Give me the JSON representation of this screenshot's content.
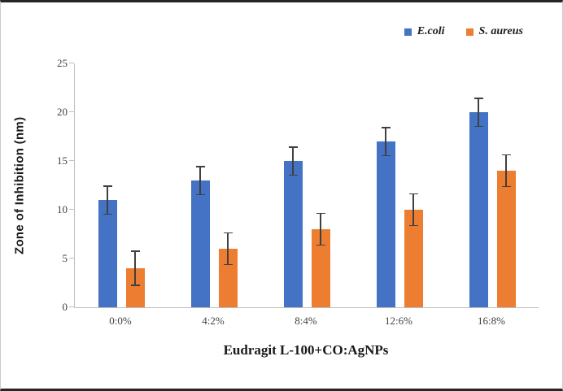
{
  "figure": {
    "background": "#ffffff",
    "side_border_color": "#cccccc",
    "rule_color": "#262626"
  },
  "chart_data": {
    "type": "bar",
    "title": "",
    "xlabel": "Eudragit L-100+CO:AgNPs",
    "ylabel": "Zone of Inhibition (nm)",
    "categories": [
      "0:0%",
      "4:2%",
      "8:4%",
      "12:6%",
      "16:8%"
    ],
    "series": [
      {
        "name": "E.coli",
        "color": "#4472C4",
        "values": [
          11,
          13,
          15,
          17,
          20
        ],
        "errors": [
          1.5,
          1.5,
          1.5,
          1.5,
          1.5
        ]
      },
      {
        "name": "S. aureus",
        "color": "#ED7D31",
        "values": [
          4,
          6,
          8,
          10,
          14
        ],
        "errors": [
          1.8,
          1.7,
          1.7,
          1.7,
          1.7
        ]
      }
    ],
    "ylim": [
      0,
      25
    ],
    "yticks": [
      0,
      5,
      10,
      15,
      20,
      25
    ],
    "grid": false,
    "legend_position": "top-right",
    "error_bar_color": "#404040",
    "axis_color": "#bfbfbf"
  }
}
